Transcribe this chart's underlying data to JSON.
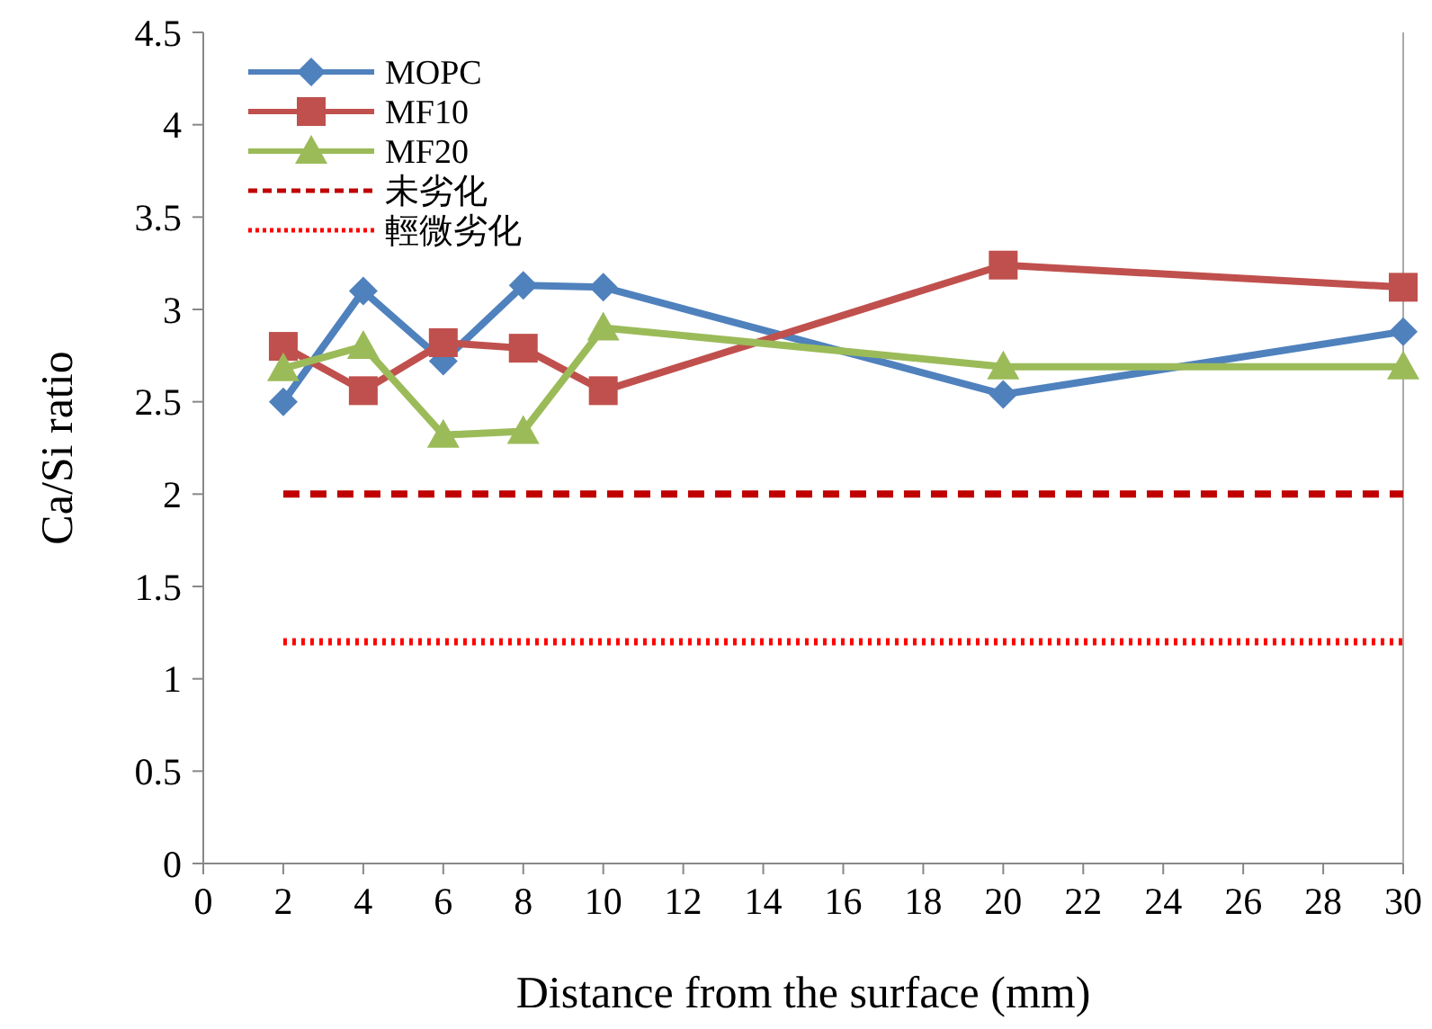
{
  "chart_data": {
    "type": "line",
    "xlabel": "Distance from the surface (mm)",
    "ylabel": "Ca/Si ratio",
    "xlim": [
      0,
      30
    ],
    "xticks": [
      0,
      2,
      4,
      6,
      8,
      10,
      12,
      14,
      16,
      18,
      20,
      22,
      24,
      26,
      28,
      30
    ],
    "ylim": [
      0,
      4.5
    ],
    "yticks": [
      0,
      0.5,
      1,
      1.5,
      2,
      2.5,
      3,
      3.5,
      4,
      4.5
    ],
    "grid": false,
    "legend": "top left",
    "series": [
      {
        "name": "MOPC",
        "color": "#4f81bd",
        "marker": "diamond",
        "line_style": "solid",
        "x": [
          2,
          4,
          6,
          8,
          10,
          20,
          30
        ],
        "values": [
          2.5,
          3.1,
          2.72,
          3.13,
          3.12,
          2.54,
          2.88
        ]
      },
      {
        "name": "MF10",
        "color": "#c0504d",
        "marker": "square",
        "line_style": "solid",
        "x": [
          2,
          4,
          6,
          8,
          10,
          20,
          30
        ],
        "values": [
          2.8,
          2.56,
          2.82,
          2.79,
          2.56,
          3.24,
          3.12
        ]
      },
      {
        "name": "MF20",
        "color": "#9bbb59",
        "marker": "triangle",
        "line_style": "solid",
        "x": [
          2,
          4,
          6,
          8,
          10,
          20,
          30
        ],
        "values": [
          2.68,
          2.8,
          2.32,
          2.34,
          2.9,
          2.69,
          2.69
        ]
      },
      {
        "name": "未劣化",
        "color": "#c00000",
        "marker": "none",
        "line_style": "dashed",
        "x": [
          2,
          30
        ],
        "values": [
          2,
          2
        ]
      },
      {
        "name": "輕微劣化",
        "color": "#ff0000",
        "marker": "none",
        "line_style": "dotted",
        "x": [
          2,
          30
        ],
        "values": [
          1.2,
          1.2
        ]
      }
    ]
  }
}
